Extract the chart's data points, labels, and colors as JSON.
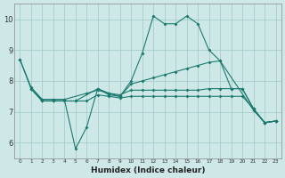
{
  "xlabel": "Humidex (Indice chaleur)",
  "xlim": [
    -0.5,
    23.5
  ],
  "ylim": [
    5.5,
    10.5
  ],
  "yticks": [
    6,
    7,
    8,
    9,
    10
  ],
  "xticks": [
    0,
    1,
    2,
    3,
    4,
    5,
    6,
    7,
    8,
    9,
    10,
    11,
    12,
    13,
    14,
    15,
    16,
    17,
    18,
    19,
    20,
    21,
    22,
    23
  ],
  "background_color": "#cee8e8",
  "grid_color": "#9fc8c8",
  "line_color": "#1a7a6e",
  "lines": [
    {
      "comment": "spike line: 0->8.7, dip at 5->5.8, spike at 12->10.1, 15->10.1",
      "x": [
        0,
        1,
        2,
        3,
        4,
        5,
        6,
        7,
        8,
        9,
        10,
        11,
        12,
        13,
        14,
        15,
        16,
        17,
        18,
        21,
        22,
        23
      ],
      "y": [
        8.7,
        7.8,
        7.4,
        7.4,
        7.4,
        5.8,
        6.5,
        7.75,
        7.6,
        7.5,
        8.0,
        8.9,
        10.1,
        9.85,
        9.85,
        10.1,
        9.85,
        9.0,
        8.65,
        7.05,
        6.65,
        6.7
      ]
    },
    {
      "x": [
        0,
        1,
        2,
        3,
        5,
        7,
        8,
        9,
        10,
        11,
        12,
        13,
        14,
        15,
        16,
        17,
        18,
        19,
        20,
        21,
        22,
        23
      ],
      "y": [
        8.7,
        7.75,
        7.35,
        7.35,
        7.35,
        7.75,
        7.55,
        7.5,
        7.9,
        8.0,
        8.1,
        8.2,
        8.3,
        8.4,
        8.5,
        8.6,
        8.65,
        7.75,
        7.75,
        7.1,
        6.65,
        6.7
      ]
    },
    {
      "x": [
        1,
        2,
        3,
        4,
        5,
        6,
        7,
        8,
        9,
        10,
        11,
        12,
        13,
        14,
        15,
        16,
        17,
        18,
        19,
        20,
        21,
        22,
        23
      ],
      "y": [
        7.75,
        7.35,
        7.35,
        7.35,
        7.35,
        7.35,
        7.55,
        7.5,
        7.45,
        7.5,
        7.5,
        7.5,
        7.5,
        7.5,
        7.5,
        7.5,
        7.5,
        7.5,
        7.5,
        7.5,
        7.1,
        6.65,
        6.7
      ]
    },
    {
      "x": [
        1,
        2,
        3,
        4,
        6,
        7,
        8,
        9,
        10,
        11,
        12,
        13,
        14,
        15,
        16,
        17,
        18,
        19,
        20,
        21,
        22,
        23
      ],
      "y": [
        7.75,
        7.4,
        7.4,
        7.4,
        7.6,
        7.7,
        7.6,
        7.55,
        7.7,
        7.7,
        7.7,
        7.7,
        7.7,
        7.7,
        7.7,
        7.75,
        7.75,
        7.75,
        7.75,
        7.1,
        6.65,
        6.7
      ]
    }
  ]
}
